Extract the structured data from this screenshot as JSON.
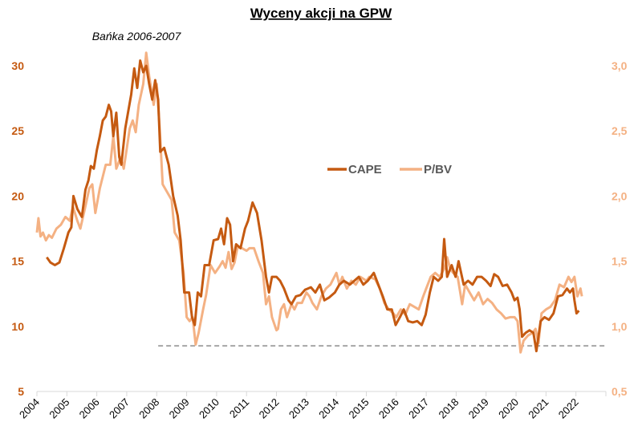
{
  "chart_data": {
    "type": "line",
    "title": "Wyceny akcji na GPW",
    "annotation": "Bańka 2006-2007",
    "x_ticks": [
      "2004",
      "2005",
      "2006",
      "2007",
      "2008",
      "2009",
      "2010",
      "2011",
      "2012",
      "2013",
      "2014",
      "2015",
      "2016",
      "2017",
      "2018",
      "2019",
      "2020",
      "2021",
      "2022"
    ],
    "xlim": [
      2004,
      2023
    ],
    "y_left": {
      "ticks": [
        "5",
        "10",
        "15",
        "20",
        "25",
        "30"
      ],
      "lim": [
        5,
        30
      ],
      "color": "#c55a11"
    },
    "y_right": {
      "ticks": [
        "0,5",
        "1,0",
        "1,5",
        "2,0",
        "2,5",
        "3,0"
      ],
      "lim": [
        0.5,
        3.0
      ],
      "color": "#f4b183"
    },
    "legend_position": "center",
    "grid": false,
    "reference_line": {
      "axis": "left",
      "value": 8.5,
      "from_x": 2008.05,
      "style": "dashed",
      "color": "#a6a6a6"
    },
    "series": [
      {
        "name": "CAPE",
        "axis": "left",
        "color": "#c55a11",
        "points": [
          [
            2004.33,
            15.3
          ],
          [
            2004.45,
            14.9
          ],
          [
            2004.6,
            14.7
          ],
          [
            2004.75,
            14.9
          ],
          [
            2004.9,
            16
          ],
          [
            2005.05,
            17.2
          ],
          [
            2005.15,
            17.6
          ],
          [
            2005.22,
            20
          ],
          [
            2005.35,
            19
          ],
          [
            2005.5,
            18.4
          ],
          [
            2005.62,
            20.5
          ],
          [
            2005.72,
            21.2
          ],
          [
            2005.8,
            22.3
          ],
          [
            2005.9,
            22.1
          ],
          [
            2006.0,
            23.5
          ],
          [
            2006.1,
            24.6
          ],
          [
            2006.2,
            25.8
          ],
          [
            2006.3,
            26.1
          ],
          [
            2006.4,
            27
          ],
          [
            2006.48,
            26.5
          ],
          [
            2006.55,
            24.6
          ],
          [
            2006.65,
            26.4
          ],
          [
            2006.75,
            23
          ],
          [
            2006.82,
            22.4
          ],
          [
            2006.95,
            25.2
          ],
          [
            2007.05,
            26.5
          ],
          [
            2007.15,
            27.8
          ],
          [
            2007.25,
            29.8
          ],
          [
            2007.35,
            28.3
          ],
          [
            2007.45,
            30.4
          ],
          [
            2007.55,
            29.5
          ],
          [
            2007.65,
            30
          ],
          [
            2007.75,
            28.6
          ],
          [
            2007.85,
            27.4
          ],
          [
            2007.95,
            28.9
          ],
          [
            2008.05,
            27.4
          ],
          [
            2008.12,
            23.4
          ],
          [
            2008.25,
            23.7
          ],
          [
            2008.4,
            22.4
          ],
          [
            2008.55,
            20
          ],
          [
            2008.7,
            18.5
          ],
          [
            2008.8,
            16.6
          ],
          [
            2008.92,
            12.6
          ],
          [
            2009.08,
            12.6
          ],
          [
            2009.18,
            10.7
          ],
          [
            2009.27,
            10.1
          ],
          [
            2009.37,
            12.6
          ],
          [
            2009.48,
            12.3
          ],
          [
            2009.6,
            14.7
          ],
          [
            2009.75,
            14.7
          ],
          [
            2009.9,
            16.6
          ],
          [
            2010.05,
            16.7
          ],
          [
            2010.15,
            17.5
          ],
          [
            2010.25,
            16.3
          ],
          [
            2010.35,
            18.3
          ],
          [
            2010.45,
            17.8
          ],
          [
            2010.55,
            15
          ],
          [
            2010.65,
            16.3
          ],
          [
            2010.8,
            16
          ],
          [
            2010.95,
            17.5
          ],
          [
            2011.05,
            18.1
          ],
          [
            2011.2,
            19.5
          ],
          [
            2011.35,
            18.7
          ],
          [
            2011.5,
            16.6
          ],
          [
            2011.65,
            13.8
          ],
          [
            2011.75,
            12.6
          ],
          [
            2011.85,
            13.8
          ],
          [
            2012.0,
            13.8
          ],
          [
            2012.12,
            13.5
          ],
          [
            2012.25,
            12.9
          ],
          [
            2012.4,
            12
          ],
          [
            2012.5,
            11.7
          ],
          [
            2012.65,
            12.3
          ],
          [
            2012.8,
            12.4
          ],
          [
            2012.95,
            12.8
          ],
          [
            2013.15,
            13
          ],
          [
            2013.3,
            12.6
          ],
          [
            2013.45,
            13.2
          ],
          [
            2013.6,
            12
          ],
          [
            2013.75,
            12.2
          ],
          [
            2013.95,
            12.6
          ],
          [
            2014.1,
            13.2
          ],
          [
            2014.25,
            13.5
          ],
          [
            2014.45,
            13.2
          ],
          [
            2014.6,
            13.5
          ],
          [
            2014.75,
            13.8
          ],
          [
            2014.9,
            13.2
          ],
          [
            2015.05,
            13.5
          ],
          [
            2015.25,
            14.1
          ],
          [
            2015.4,
            13.2
          ],
          [
            2015.55,
            12.3
          ],
          [
            2015.7,
            11.3
          ],
          [
            2015.85,
            11.3
          ],
          [
            2015.98,
            10.1
          ],
          [
            2016.12,
            10.7
          ],
          [
            2016.25,
            11.3
          ],
          [
            2016.4,
            10.4
          ],
          [
            2016.55,
            10.3
          ],
          [
            2016.7,
            10.4
          ],
          [
            2016.85,
            10.1
          ],
          [
            2016.98,
            10.9
          ],
          [
            2017.12,
            12.6
          ],
          [
            2017.25,
            13.8
          ],
          [
            2017.4,
            13.5
          ],
          [
            2017.52,
            13.8
          ],
          [
            2017.6,
            16.7
          ],
          [
            2017.7,
            13.8
          ],
          [
            2017.85,
            14.7
          ],
          [
            2017.98,
            13.8
          ],
          [
            2018.08,
            15
          ],
          [
            2018.25,
            13.2
          ],
          [
            2018.4,
            13.5
          ],
          [
            2018.55,
            13.2
          ],
          [
            2018.7,
            13.8
          ],
          [
            2018.85,
            13.8
          ],
          [
            2019.0,
            13.5
          ],
          [
            2019.15,
            13.1
          ],
          [
            2019.27,
            14
          ],
          [
            2019.4,
            13.8
          ],
          [
            2019.55,
            13.1
          ],
          [
            2019.7,
            13.2
          ],
          [
            2019.85,
            12.6
          ],
          [
            2019.95,
            12
          ],
          [
            2020.05,
            12.2
          ],
          [
            2020.12,
            11.3
          ],
          [
            2020.2,
            9.2
          ],
          [
            2020.32,
            9.5
          ],
          [
            2020.45,
            9.7
          ],
          [
            2020.58,
            9.5
          ],
          [
            2020.68,
            8.1
          ],
          [
            2020.82,
            10.4
          ],
          [
            2020.95,
            10.7
          ],
          [
            2021.1,
            10.5
          ],
          [
            2021.25,
            11
          ],
          [
            2021.4,
            12.3
          ],
          [
            2021.55,
            12.4
          ],
          [
            2021.7,
            12.9
          ],
          [
            2021.8,
            12.6
          ],
          [
            2021.9,
            12.9
          ],
          [
            2021.95,
            12
          ],
          [
            2022.02,
            11
          ],
          [
            2022.1,
            11.2
          ]
        ]
      },
      {
        "name": "P/BV",
        "axis": "right",
        "color": "#f4b183",
        "points": [
          [
            2004.0,
            1.72
          ],
          [
            2004.05,
            1.83
          ],
          [
            2004.12,
            1.69
          ],
          [
            2004.2,
            1.72
          ],
          [
            2004.3,
            1.66
          ],
          [
            2004.4,
            1.7
          ],
          [
            2004.5,
            1.68
          ],
          [
            2004.65,
            1.75
          ],
          [
            2004.8,
            1.78
          ],
          [
            2004.95,
            1.84
          ],
          [
            2005.1,
            1.81
          ],
          [
            2005.2,
            1.92
          ],
          [
            2005.35,
            1.81
          ],
          [
            2005.45,
            1.75
          ],
          [
            2005.6,
            1.9
          ],
          [
            2005.75,
            2.06
          ],
          [
            2005.85,
            2.09
          ],
          [
            2005.95,
            1.87
          ],
          [
            2006.1,
            2.06
          ],
          [
            2006.3,
            2.24
          ],
          [
            2006.45,
            2.24
          ],
          [
            2006.55,
            2.46
          ],
          [
            2006.65,
            2.21
          ],
          [
            2006.8,
            2.3
          ],
          [
            2006.9,
            2.21
          ],
          [
            2007.1,
            2.52
          ],
          [
            2007.2,
            2.58
          ],
          [
            2007.3,
            2.49
          ],
          [
            2007.4,
            2.7
          ],
          [
            2007.55,
            2.86
          ],
          [
            2007.65,
            3.1
          ],
          [
            2007.75,
            2.92
          ],
          [
            2007.9,
            2.7
          ],
          [
            2008.0,
            2.86
          ],
          [
            2008.1,
            2.52
          ],
          [
            2008.2,
            2.09
          ],
          [
            2008.35,
            2.03
          ],
          [
            2008.5,
            1.97
          ],
          [
            2008.6,
            1.72
          ],
          [
            2008.75,
            1.66
          ],
          [
            2008.9,
            1.41
          ],
          [
            2009.0,
            1.07
          ],
          [
            2009.1,
            1.04
          ],
          [
            2009.2,
            1.07
          ],
          [
            2009.3,
            0.86
          ],
          [
            2009.4,
            0.95
          ],
          [
            2009.55,
            1.13
          ],
          [
            2009.65,
            1.24
          ],
          [
            2009.8,
            1.47
          ],
          [
            2009.95,
            1.41
          ],
          [
            2010.1,
            1.46
          ],
          [
            2010.2,
            1.5
          ],
          [
            2010.3,
            1.45
          ],
          [
            2010.4,
            1.57
          ],
          [
            2010.5,
            1.44
          ],
          [
            2010.6,
            1.49
          ],
          [
            2010.7,
            1.61
          ],
          [
            2010.85,
            1.6
          ],
          [
            2011.0,
            1.58
          ],
          [
            2011.1,
            1.6
          ],
          [
            2011.25,
            1.6
          ],
          [
            2011.4,
            1.5
          ],
          [
            2011.55,
            1.41
          ],
          [
            2011.65,
            1.17
          ],
          [
            2011.75,
            1.23
          ],
          [
            2011.85,
            1.07
          ],
          [
            2012.0,
            0.97
          ],
          [
            2012.05,
            0.98
          ],
          [
            2012.15,
            1.13
          ],
          [
            2012.25,
            1.17
          ],
          [
            2012.35,
            1.07
          ],
          [
            2012.5,
            1.17
          ],
          [
            2012.6,
            1.13
          ],
          [
            2012.7,
            1.18
          ],
          [
            2012.85,
            1.18
          ],
          [
            2013.0,
            1.26
          ],
          [
            2013.1,
            1.23
          ],
          [
            2013.2,
            1.18
          ],
          [
            2013.35,
            1.13
          ],
          [
            2013.5,
            1.23
          ],
          [
            2013.65,
            1.29
          ],
          [
            2013.8,
            1.32
          ],
          [
            2014.0,
            1.41
          ],
          [
            2014.1,
            1.32
          ],
          [
            2014.2,
            1.38
          ],
          [
            2014.35,
            1.29
          ],
          [
            2014.5,
            1.35
          ],
          [
            2014.65,
            1.32
          ],
          [
            2014.8,
            1.38
          ],
          [
            2015.0,
            1.35
          ],
          [
            2015.1,
            1.38
          ],
          [
            2015.3,
            1.36
          ],
          [
            2015.45,
            1.29
          ],
          [
            2015.6,
            1.18
          ],
          [
            2015.75,
            1.13
          ],
          [
            2015.9,
            1.1
          ],
          [
            2016.0,
            1.07
          ],
          [
            2016.15,
            1.13
          ],
          [
            2016.3,
            1.09
          ],
          [
            2016.45,
            1.17
          ],
          [
            2016.6,
            1.15
          ],
          [
            2016.75,
            1.13
          ],
          [
            2016.9,
            1.23
          ],
          [
            2017.0,
            1.29
          ],
          [
            2017.15,
            1.38
          ],
          [
            2017.3,
            1.41
          ],
          [
            2017.45,
            1.38
          ],
          [
            2017.6,
            1.44
          ],
          [
            2017.7,
            1.53
          ],
          [
            2017.8,
            1.44
          ],
          [
            2017.9,
            1.41
          ],
          [
            2018.05,
            1.38
          ],
          [
            2018.2,
            1.17
          ],
          [
            2018.3,
            1.32
          ],
          [
            2018.45,
            1.26
          ],
          [
            2018.6,
            1.2
          ],
          [
            2018.75,
            1.26
          ],
          [
            2018.9,
            1.17
          ],
          [
            2019.05,
            1.21
          ],
          [
            2019.2,
            1.18
          ],
          [
            2019.35,
            1.13
          ],
          [
            2019.5,
            1.1
          ],
          [
            2019.65,
            1.06
          ],
          [
            2019.8,
            1.07
          ],
          [
            2019.95,
            1.07
          ],
          [
            2020.05,
            1.04
          ],
          [
            2020.15,
            0.8
          ],
          [
            2020.25,
            0.89
          ],
          [
            2020.4,
            0.93
          ],
          [
            2020.55,
            0.95
          ],
          [
            2020.65,
            0.98
          ],
          [
            2020.75,
            0.87
          ],
          [
            2020.85,
            1.1
          ],
          [
            2021.0,
            1.13
          ],
          [
            2021.15,
            1.15
          ],
          [
            2021.3,
            1.2
          ],
          [
            2021.45,
            1.32
          ],
          [
            2021.6,
            1.3
          ],
          [
            2021.75,
            1.38
          ],
          [
            2021.85,
            1.34
          ],
          [
            2021.95,
            1.38
          ],
          [
            2022.05,
            1.23
          ],
          [
            2022.15,
            1.29
          ],
          [
            2022.2,
            1.23
          ]
        ]
      }
    ]
  }
}
